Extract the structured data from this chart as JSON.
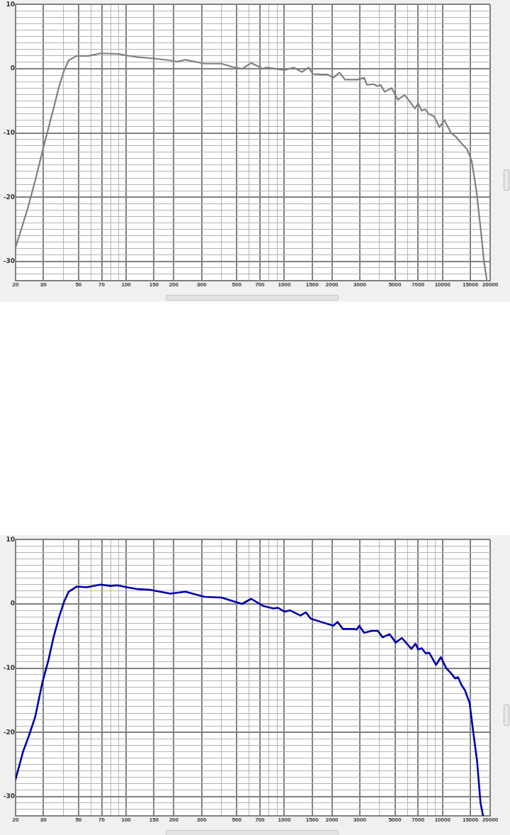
{
  "chart_data": [
    {
      "type": "line",
      "log": "x",
      "grid": true,
      "marker": "none",
      "line_style": "solid",
      "x": [
        20,
        23.9,
        26.8,
        30.1,
        32.3,
        34.9,
        37.7,
        40.6,
        43.3,
        48.6,
        57.7,
        68.8,
        90,
        99,
        119,
        150,
        190,
        210,
        237,
        313,
        400,
        467,
        542,
        617,
        731,
        768,
        1000,
        1145,
        1290,
        1425,
        1512,
        1706,
        1884,
        2040,
        2232,
        2416,
        2890,
        3194,
        3324,
        3672,
        3860,
        4058,
        4308,
        4764,
        5212,
        5754,
        6110,
        6684,
        7020,
        7380,
        7760,
        8148,
        8832,
        9572,
        10258,
        11324,
        12160,
        12914,
        14258,
        15276,
        16370,
        17380,
        18280,
        19012
      ],
      "series": [
        {
          "color": "#808080",
          "values": [
            -27.8,
            -21.7,
            -17.1,
            -12.1,
            -9.2,
            -6.0,
            -2.7,
            -0.2,
            1.3,
            2.0,
            2.0,
            2.4,
            2.3,
            2.1,
            1.8,
            1.6,
            1.3,
            1.1,
            1.4,
            0.8,
            0.8,
            0.3,
            0,
            0.9,
            0,
            0.2,
            -0.2,
            0.2,
            -0.5,
            0.2,
            -0.8,
            -0.9,
            -0.9,
            -1.4,
            -0.6,
            -1.7,
            -1.7,
            -1.4,
            -2.5,
            -2.4,
            -2.7,
            -2.5,
            -3.6,
            -3.0,
            -4.8,
            -4.1,
            -4.9,
            -6.2,
            -5.4,
            -6.5,
            -6.3,
            -7.0,
            -7.4,
            -9.1,
            -8.0,
            -10.0,
            -10.6,
            -11.4,
            -12.5,
            -14.3,
            -19.0,
            -24.7,
            -30.0,
            -32.8
          ]
        }
      ],
      "xlim": [
        20,
        20000
      ],
      "ylim": [
        -33,
        10
      ],
      "xticks": [
        20,
        30,
        {
          "value": 40,
          "label": null
        },
        50,
        {
          "value": 60,
          "label": null
        },
        70,
        {
          "value": 80,
          "label": null
        },
        {
          "value": 90,
          "label": null
        },
        100,
        150,
        200,
        300,
        {
          "value": 400,
          "label": null
        },
        500,
        {
          "value": 600,
          "label": null
        },
        700,
        {
          "value": 800,
          "label": null
        },
        {
          "value": 900,
          "label": null
        },
        1000,
        1500,
        2000,
        3000,
        {
          "value": 4000,
          "label": null
        },
        5000,
        {
          "value": 6000,
          "label": null
        },
        7000,
        {
          "value": 8000,
          "label": null
        },
        {
          "value": 9000,
          "label": null
        },
        10000,
        15000,
        20000
      ],
      "yticks": [
        {
          "value": -33,
          "label": null
        },
        {
          "value": -32,
          "label": null
        },
        {
          "value": -31,
          "label": null
        },
        -30,
        {
          "value": -29,
          "label": null
        },
        {
          "value": -28,
          "label": null
        },
        {
          "value": -27,
          "label": null
        },
        {
          "value": -26,
          "label": null
        },
        {
          "value": -25,
          "label": null
        },
        {
          "value": -24,
          "label": null
        },
        {
          "value": -23,
          "label": null
        },
        {
          "value": -22,
          "label": null
        },
        {
          "value": -21,
          "label": null
        },
        -20,
        {
          "value": -19,
          "label": null
        },
        {
          "value": -18,
          "label": null
        },
        {
          "value": -17,
          "label": null
        },
        {
          "value": -16,
          "label": null
        },
        {
          "value": -15,
          "label": null
        },
        {
          "value": -14,
          "label": null
        },
        {
          "value": -13,
          "label": null
        },
        {
          "value": -12,
          "label": null
        },
        {
          "value": -11,
          "label": null
        },
        -10,
        {
          "value": -9,
          "label": null
        },
        {
          "value": -8,
          "label": null
        },
        {
          "value": -7,
          "label": null
        },
        {
          "value": -6,
          "label": null
        },
        {
          "value": -5,
          "label": null
        },
        {
          "value": -4,
          "label": null
        },
        {
          "value": -3,
          "label": null
        },
        {
          "value": -2,
          "label": null
        },
        {
          "value": -1,
          "label": null
        },
        0,
        {
          "value": 1,
          "label": null
        },
        {
          "value": 2,
          "label": null
        },
        {
          "value": 3,
          "label": null
        },
        {
          "value": 4,
          "label": null
        },
        {
          "value": 5,
          "label": null
        },
        {
          "value": 6,
          "label": null
        },
        {
          "value": 7,
          "label": null
        },
        {
          "value": 8,
          "label": null
        },
        {
          "value": 9,
          "label": null
        },
        10
      ]
    },
    {
      "type": "line",
      "log": "x",
      "grid": true,
      "marker": "none",
      "line_style": "solid",
      "x": [
        20,
        22.3,
        24.3,
        26.6,
        29.5,
        32.3,
        34.9,
        37.7,
        40.6,
        43.3,
        48.6,
        56.3,
        68.8,
        79.3,
        88.2,
        101,
        119,
        141,
        190,
        237,
        313,
        400,
        540,
        617,
        731,
        848,
        910,
        1000,
        1088,
        1264,
        1368,
        1468,
        1706,
        2040,
        2168,
        2346,
        2752,
        2864,
        2978,
        3194,
        3566,
        3900,
        4180,
        4620,
        5058,
        5534,
        5808,
        6356,
        6746,
        7020,
        7380,
        7834,
        8240,
        9100,
        9750,
        10560,
        11320,
        12020,
        12520,
        13160,
        13836,
        14820,
        15740,
        16540,
        17380,
        18040
      ],
      "series": [
        {
          "color": "#0000aa",
          "values": [
            -27.3,
            -23.0,
            -20.5,
            -17.6,
            -12.3,
            -8.7,
            -5.0,
            -2.0,
            0.4,
            1.9,
            2.7,
            2.6,
            3.0,
            2.8,
            2.9,
            2.6,
            2.3,
            2.2,
            1.6,
            1.9,
            1.1,
            1.0,
            0,
            0.8,
            -0.3,
            -0.7,
            -0.6,
            -1.2,
            -1.0,
            -1.8,
            -1.3,
            -2.3,
            -2.8,
            -3.4,
            -2.8,
            -3.9,
            -3.9,
            -4.0,
            -3.4,
            -4.5,
            -4.2,
            -4.2,
            -5.2,
            -4.7,
            -6.0,
            -5.3,
            -5.9,
            -7.0,
            -6.2,
            -7.1,
            -6.9,
            -7.7,
            -7.6,
            -9.5,
            -8.3,
            -10.0,
            -10.8,
            -11.6,
            -11.4,
            -12.6,
            -13.4,
            -15.4,
            -20.5,
            -24.5,
            -31.0,
            -33.0
          ]
        }
      ],
      "xlim": [
        20,
        20000
      ],
      "ylim": [
        -33,
        10
      ],
      "xticks": [
        20,
        30,
        {
          "value": 40,
          "label": null
        },
        50,
        {
          "value": 60,
          "label": null
        },
        70,
        {
          "value": 80,
          "label": null
        },
        {
          "value": 90,
          "label": null
        },
        100,
        150,
        200,
        300,
        {
          "value": 400,
          "label": null
        },
        500,
        {
          "value": 600,
          "label": null
        },
        700,
        {
          "value": 800,
          "label": null
        },
        {
          "value": 900,
          "label": null
        },
        1000,
        1500,
        2000,
        3000,
        {
          "value": 4000,
          "label": null
        },
        5000,
        {
          "value": 6000,
          "label": null
        },
        7000,
        {
          "value": 8000,
          "label": null
        },
        {
          "value": 9000,
          "label": null
        },
        10000,
        15000,
        20000
      ],
      "yticks": [
        {
          "value": -33,
          "label": null
        },
        {
          "value": -32,
          "label": null
        },
        {
          "value": -31,
          "label": null
        },
        -30,
        {
          "value": -29,
          "label": null
        },
        {
          "value": -28,
          "label": null
        },
        {
          "value": -27,
          "label": null
        },
        {
          "value": -26,
          "label": null
        },
        {
          "value": -25,
          "label": null
        },
        {
          "value": -24,
          "label": null
        },
        {
          "value": -23,
          "label": null
        },
        {
          "value": -22,
          "label": null
        },
        {
          "value": -21,
          "label": null
        },
        -20,
        {
          "value": -19,
          "label": null
        },
        {
          "value": -18,
          "label": null
        },
        {
          "value": -17,
          "label": null
        },
        {
          "value": -16,
          "label": null
        },
        {
          "value": -15,
          "label": null
        },
        {
          "value": -14,
          "label": null
        },
        {
          "value": -13,
          "label": null
        },
        {
          "value": -12,
          "label": null
        },
        {
          "value": -11,
          "label": null
        },
        -10,
        {
          "value": -9,
          "label": null
        },
        {
          "value": -8,
          "label": null
        },
        {
          "value": -7,
          "label": null
        },
        {
          "value": -6,
          "label": null
        },
        {
          "value": -5,
          "label": null
        },
        {
          "value": -4,
          "label": null
        },
        {
          "value": -3,
          "label": null
        },
        {
          "value": -2,
          "label": null
        },
        {
          "value": -1,
          "label": null
        },
        0,
        {
          "value": 1,
          "label": null
        },
        {
          "value": 2,
          "label": null
        },
        {
          "value": 3,
          "label": null
        },
        {
          "value": 4,
          "label": null
        },
        {
          "value": 5,
          "label": null
        },
        {
          "value": 6,
          "label": null
        },
        {
          "value": 7,
          "label": null
        },
        {
          "value": 8,
          "label": null
        },
        {
          "value": 9,
          "label": null
        },
        10
      ]
    }
  ]
}
